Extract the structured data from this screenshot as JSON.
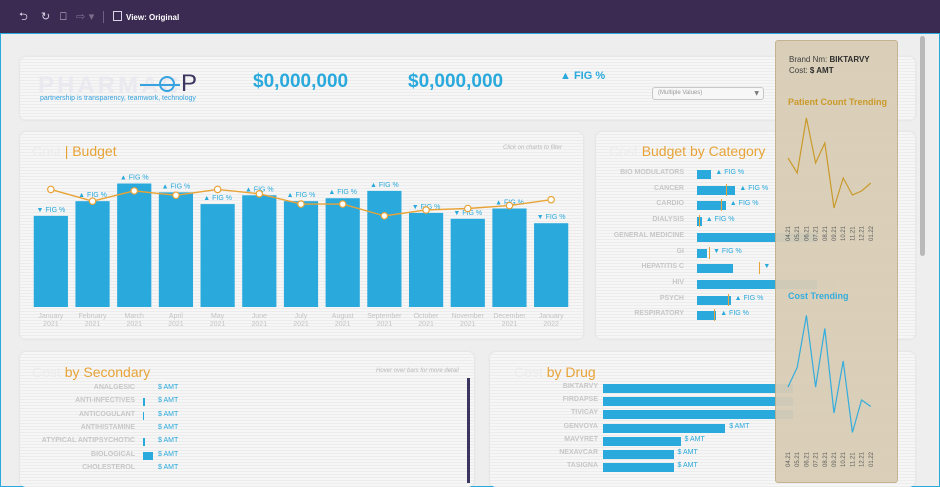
{
  "toolbar": {
    "undo_icon": "undo-icon",
    "redo_icon": "redo-icon",
    "revert_icon": "revert-icon",
    "forward_icon": "forward-icon",
    "view_label": "View: Original"
  },
  "header": {
    "logo_text": "PHARMACORP",
    "logo_lead": "PHARMAC",
    "logo_tail": "P",
    "tagline": "partnership is transparency, teamwork, technology",
    "kpi1": "$0,000,000",
    "kpi2": "$0,000,000",
    "kpi3": "▲ FIG %",
    "filter_value": "(Multiple Values)"
  },
  "cost_budget": {
    "title_a": "Cost",
    "title_b": "| Budget",
    "hint": "Click on charts to filter"
  },
  "chart_data": {
    "type": "bar",
    "categories": [
      "January\n2021",
      "February\n2021",
      "March\n2021",
      "April\n2021",
      "May\n2021",
      "June\n2021",
      "July\n2021",
      "August\n2021",
      "September\n2021",
      "October\n2021",
      "November\n2021",
      "December\n2021",
      "January\n2022"
    ],
    "cat_month": [
      "January",
      "February",
      "March",
      "April",
      "May",
      "June",
      "July",
      "August",
      "September",
      "October",
      "November",
      "December",
      "January"
    ],
    "cat_year": [
      "2021",
      "2021",
      "2021",
      "2021",
      "2021",
      "2021",
      "2021",
      "2021",
      "2021",
      "2021",
      "2021",
      "2021",
      "2022"
    ],
    "series": [
      {
        "name": "",
        "type": "bar",
        "values": [
          62,
          72,
          84,
          78,
          70,
          76,
          72,
          74,
          79,
          64,
          60,
          67,
          57
        ]
      },
      {
        "name": "",
        "type": "line",
        "values": [
          80,
          72,
          79,
          76,
          80,
          77,
          70,
          70,
          62,
          66,
          67,
          69,
          73
        ]
      }
    ],
    "labels": [
      "▼ FIG %",
      "▲ FIG %",
      "▲ FIG %",
      "▲ FIG %",
      "▲ FIG %",
      "▲ FIG %",
      "▲ FIG %",
      "▲ FIG %",
      "▲ FIG %",
      "▼ FIG %",
      "▼ FIG %",
      "▲ FIG %",
      "▼ FIG %"
    ],
    "ylim": [
      0,
      100
    ],
    "colors": {
      "bar": "#29a9dc",
      "line": "#e8a337"
    }
  },
  "budget_by_category": {
    "title_a": "Cost",
    "title_b": "Budget by Category",
    "rows": [
      {
        "label": "BIO MODULATORS",
        "value": 6,
        "fig": "▲ FIG %",
        "budget": 0
      },
      {
        "label": "CANCER",
        "value": 16,
        "fig": "▲ FIG %",
        "budget": 12
      },
      {
        "label": "CARDIO",
        "value": 12,
        "fig": "▲ FIG %",
        "budget": 10
      },
      {
        "label": "DIALYSIS",
        "value": 2,
        "fig": "▲ FIG %",
        "budget": 1
      },
      {
        "label": "GENERAL MEDICINE",
        "value": 100,
        "fig": "",
        "budget": 0
      },
      {
        "label": "GI",
        "value": 4,
        "fig": "▼ FIG %",
        "budget": 5
      },
      {
        "label": "HEPATITIS C",
        "value": 15,
        "fig": "▼",
        "budget": 26
      },
      {
        "label": "HIV",
        "value": 100,
        "fig": "",
        "budget": 0
      },
      {
        "label": "PSYCH",
        "value": 14,
        "fig": "▲ FIG %",
        "budget": 13
      },
      {
        "label": "RESPIRATORY",
        "value": 8,
        "fig": "▲ FIG %",
        "budget": 7
      }
    ]
  },
  "by_secondary": {
    "title_a": "Cost",
    "title_b": "by Secondary",
    "hint": "Hover over bars for more detail",
    "rows": [
      {
        "label": "ANALGESIC",
        "value": 0,
        "amt": "$ AMT"
      },
      {
        "label": "ANTI-INFECTIVES",
        "value": 2,
        "amt": "$ AMT"
      },
      {
        "label": "ANTICOGULANT",
        "value": 1,
        "amt": "$ AMT"
      },
      {
        "label": "ANTIHISTAMINE",
        "value": 0,
        "amt": "$ AMT"
      },
      {
        "label": "ATYPICAL ANTIPSYCHOTIC",
        "value": 2,
        "amt": "$ AMT"
      },
      {
        "label": "BIOLOGICAL",
        "value": 10,
        "amt": "$ AMT"
      },
      {
        "label": "CHOLESTEROL",
        "value": 0,
        "amt": "$ AMT"
      }
    ]
  },
  "by_drug": {
    "title_a": "Cost",
    "title_b": "by Drug",
    "rows": [
      {
        "label": "BIKTARVY",
        "value": 100,
        "amt": ""
      },
      {
        "label": "FIRDAPSE",
        "value": 100,
        "amt": ""
      },
      {
        "label": "TIVICAY",
        "value": 100,
        "amt": ""
      },
      {
        "label": "GENVOYA",
        "value": 52,
        "amt": "$ AMT"
      },
      {
        "label": "MAVYRET",
        "value": 33,
        "amt": "$ AMT"
      },
      {
        "label": "NEXAVCAR",
        "value": 30,
        "amt": "$ AMT"
      },
      {
        "label": "TASIGNA",
        "value": 30,
        "amt": "$ AMT"
      }
    ]
  },
  "tooltip": {
    "brand_label": "Brand Nm:",
    "brand_value": "BIKTARVY",
    "cost_label": "Cost:",
    "cost_value": "$ AMT",
    "patient_title": "Patient Count Trending",
    "cost_title": "Cost Trending",
    "ticks": [
      "04.21",
      "05.21",
      "06.21",
      "07.21",
      "08.21",
      "09.21",
      "10.21",
      "11.21",
      "12.21",
      "01.22"
    ],
    "patient_values": [
      55,
      40,
      95,
      50,
      70,
      5,
      35,
      18,
      22,
      30
    ],
    "cost_values": [
      40,
      55,
      95,
      40,
      85,
      20,
      60,
      5,
      30,
      25
    ],
    "colors": {
      "patient": "#c8951f",
      "cost": "#29a9dc"
    }
  }
}
